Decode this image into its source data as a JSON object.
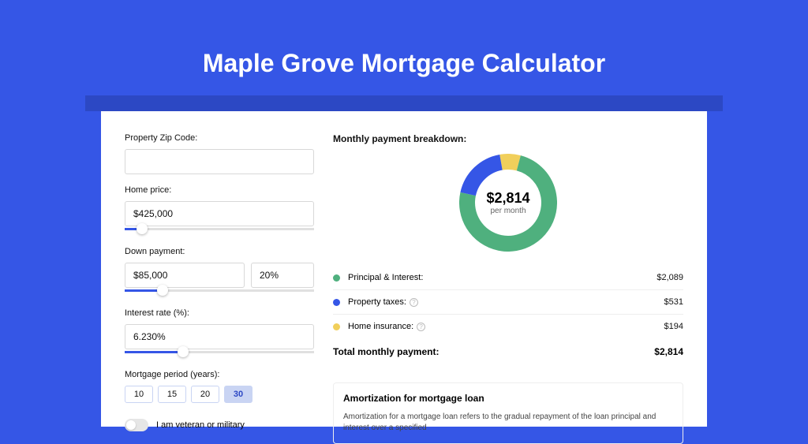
{
  "colors": {
    "page_bg": "#3556e6",
    "band_bg": "#2c48c4",
    "card_bg": "#ffffff",
    "accent": "#3556e6",
    "principal": "#4fb07e",
    "taxes": "#3556e6",
    "insurance": "#f1cf5b",
    "text": "#111111"
  },
  "title": "Maple Grove Mortgage Calculator",
  "form": {
    "zip_label": "Property Zip Code:",
    "zip_value": "",
    "home_price_label": "Home price:",
    "home_price_value": "$425,000",
    "home_price_slider_pct": 9,
    "down_label": "Down payment:",
    "down_amount": "$85,000",
    "down_pct": "20%",
    "down_slider_pct": 20,
    "rate_label": "Interest rate (%):",
    "rate_value": "6.230%",
    "rate_slider_pct": 31,
    "period_label": "Mortgage period (years):",
    "periods": [
      "10",
      "15",
      "20",
      "30"
    ],
    "period_selected": "30",
    "veteran_label": "I am veteran or military"
  },
  "breakdown": {
    "header": "Monthly payment breakdown:",
    "center_amount": "$2,814",
    "center_sub": "per month",
    "rows": [
      {
        "label": "Principal & Interest:",
        "color": "#4fb07e",
        "value": "$2,089",
        "pct": 74.2,
        "info": false
      },
      {
        "label": "Property taxes:",
        "color": "#3556e6",
        "value": "$531",
        "pct": 18.9,
        "info": true
      },
      {
        "label": "Home insurance:",
        "color": "#f1cf5b",
        "value": "$194",
        "pct": 6.9,
        "info": true
      }
    ],
    "total_label": "Total monthly payment:",
    "total_value": "$2,814"
  },
  "amort": {
    "title": "Amortization for mortgage loan",
    "body": "Amortization for a mortgage loan refers to the gradual repayment of the loan principal and interest over a specified"
  },
  "donut_svg": {
    "size": 124,
    "thickness": 20
  }
}
